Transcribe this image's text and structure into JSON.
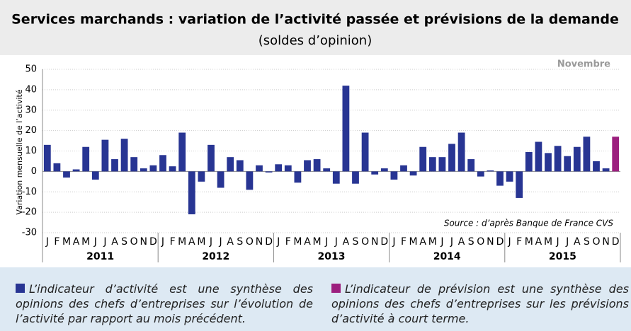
{
  "chart_data": {
    "type": "bar",
    "title": "Services marchands : variation de l’activité passée et prévisions de la demande",
    "subtitle": "(soldes d’opinion)",
    "annotation": "Novembre",
    "source": "Source : d’après Banque de France CVS",
    "y_label": "Variation mensuelle de l’activité",
    "categories": [
      "J",
      "F",
      "M",
      "A",
      "M",
      "J",
      "J",
      "A",
      "S",
      "O",
      "N",
      "D",
      "J",
      "F",
      "M",
      "A",
      "M",
      "J",
      "J",
      "A",
      "S",
      "O",
      "N",
      "D",
      "J",
      "F",
      "M",
      "A",
      "M",
      "J",
      "J",
      "A",
      "S",
      "O",
      "N",
      "D",
      "J",
      "F",
      "M",
      "A",
      "M",
      "J",
      "J",
      "A",
      "S",
      "O",
      "N",
      "D",
      "J",
      "F",
      "M",
      "A",
      "M",
      "J",
      "J",
      "A",
      "S",
      "O",
      "N",
      "D"
    ],
    "years": [
      "2011",
      "2012",
      "2013",
      "2014",
      "2015"
    ],
    "series": [
      {
        "name": "L’indicateur d’activité est une synthèse des opinions des chefs d’entreprises sur l’évolution de l’activité par rapport au mois précédent.",
        "color": "#283593",
        "values": [
          13,
          4,
          -3,
          1,
          12,
          -4,
          15.5,
          6,
          16,
          7,
          1.5,
          3,
          8,
          2.5,
          19,
          -21,
          -5,
          13,
          -8,
          7,
          5.5,
          -9,
          3,
          -0.5,
          3.5,
          3,
          -5.5,
          5.5,
          6,
          1.5,
          -6,
          42,
          -6,
          19,
          -1.5,
          1.5,
          -4,
          3,
          -2,
          12,
          7,
          7,
          13.5,
          19,
          6,
          -2.5,
          0.5,
          -7,
          -5,
          -13,
          9.5,
          14.5,
          9,
          12.5,
          7.5,
          12,
          17,
          5,
          1.5,
          null
        ]
      },
      {
        "name": "L’indicateur de prévision est une synthèse des opinions des chefs d’entreprises sur les prévisions d’activité à court terme.",
        "color": "#9c1f7e",
        "values": [
          null,
          null,
          null,
          null,
          null,
          null,
          null,
          null,
          null,
          null,
          null,
          null,
          null,
          null,
          null,
          null,
          null,
          null,
          null,
          null,
          null,
          null,
          null,
          null,
          null,
          null,
          null,
          null,
          null,
          null,
          null,
          null,
          null,
          null,
          null,
          null,
          null,
          null,
          null,
          null,
          null,
          null,
          null,
          null,
          null,
          null,
          null,
          null,
          null,
          null,
          null,
          null,
          null,
          null,
          null,
          null,
          null,
          null,
          null,
          17
        ]
      }
    ],
    "ylim": [
      -30,
      50
    ],
    "yticks": [
      -30,
      -20,
      -10,
      0,
      10,
      20,
      30,
      40,
      50
    ],
    "grid": true
  }
}
